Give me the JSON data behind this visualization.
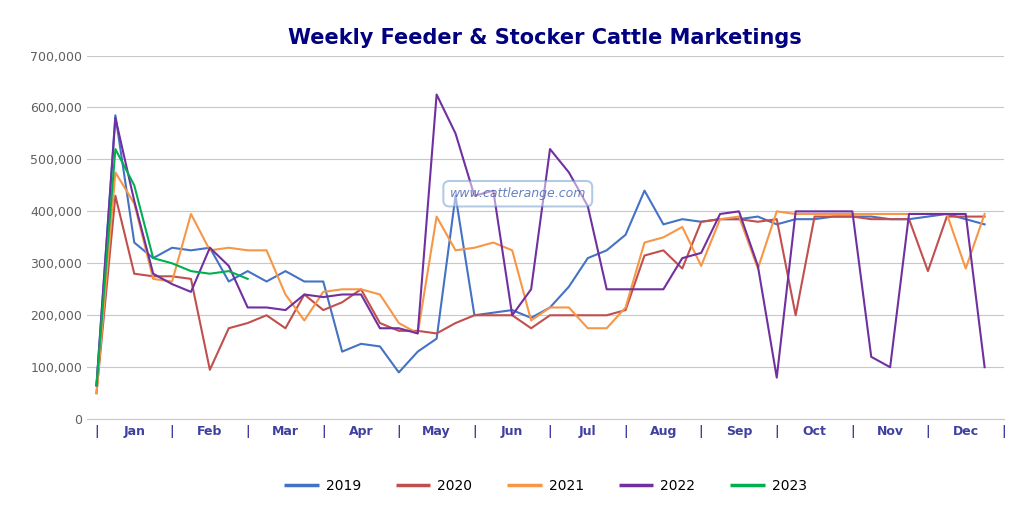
{
  "title": "Weekly Feeder & Stocker Cattle Marketings",
  "title_color": "#000080",
  "title_fontsize": 15,
  "watermark": "www.cattlerange.com",
  "background_color": "#ffffff",
  "ylim": [
    0,
    700000
  ],
  "yticks": [
    0,
    100000,
    200000,
    300000,
    400000,
    500000,
    600000,
    700000
  ],
  "ytick_labels": [
    "0",
    "100,000",
    "200,000",
    "300,000",
    "400,000",
    "500,000",
    "600,000",
    "700,000"
  ],
  "months": [
    "Jan",
    "Feb",
    "Mar",
    "Apr",
    "May",
    "Jun",
    "Jul",
    "Aug",
    "Sep",
    "Oct",
    "Nov",
    "Dec"
  ],
  "series": {
    "2019": {
      "color": "#4472C4",
      "data": [
        65000,
        585000,
        340000,
        310000,
        330000,
        325000,
        330000,
        265000,
        285000,
        265000,
        285000,
        265000,
        265000,
        130000,
        145000,
        140000,
        90000,
        130000,
        155000,
        430000,
        200000,
        205000,
        210000,
        195000,
        215000,
        255000,
        310000,
        325000,
        355000,
        440000,
        375000,
        385000,
        380000,
        385000,
        385000,
        390000,
        375000,
        385000,
        385000,
        390000,
        390000,
        390000,
        385000,
        385000,
        390000,
        395000,
        385000,
        375000
      ]
    },
    "2020": {
      "color": "#C0504D",
      "data": [
        50000,
        430000,
        280000,
        275000,
        275000,
        270000,
        95000,
        175000,
        185000,
        200000,
        175000,
        240000,
        210000,
        225000,
        250000,
        185000,
        170000,
        170000,
        165000,
        185000,
        200000,
        200000,
        200000,
        175000,
        200000,
        200000,
        200000,
        200000,
        210000,
        315000,
        325000,
        290000,
        380000,
        385000,
        385000,
        380000,
        385000,
        200000,
        390000,
        390000,
        390000,
        385000,
        385000,
        385000,
        285000,
        390000,
        390000,
        390000
      ]
    },
    "2021": {
      "color": "#F79646",
      "data": [
        50000,
        475000,
        415000,
        270000,
        265000,
        395000,
        325000,
        330000,
        325000,
        325000,
        240000,
        190000,
        245000,
        250000,
        250000,
        240000,
        185000,
        165000,
        390000,
        325000,
        330000,
        340000,
        325000,
        190000,
        215000,
        215000,
        175000,
        175000,
        215000,
        340000,
        350000,
        370000,
        295000,
        385000,
        390000,
        290000,
        400000,
        395000,
        395000,
        395000,
        395000,
        395000,
        395000,
        395000,
        395000,
        395000,
        290000,
        395000
      ]
    },
    "2022": {
      "color": "#7030A0",
      "data": [
        65000,
        580000,
        420000,
        280000,
        260000,
        245000,
        330000,
        295000,
        215000,
        215000,
        210000,
        240000,
        235000,
        240000,
        240000,
        175000,
        175000,
        165000,
        625000,
        550000,
        430000,
        440000,
        200000,
        250000,
        520000,
        475000,
        410000,
        250000,
        250000,
        250000,
        250000,
        310000,
        320000,
        395000,
        400000,
        295000,
        80000,
        400000,
        400000,
        400000,
        400000,
        120000,
        100000,
        395000,
        395000,
        395000,
        395000,
        100000
      ]
    },
    "2023": {
      "color": "#00B050",
      "data": [
        65000,
        520000,
        450000,
        310000,
        300000,
        285000,
        280000,
        285000,
        270000,
        null,
        null,
        null,
        null,
        null,
        null,
        null,
        null,
        null,
        null,
        null,
        null,
        null,
        null,
        null,
        null,
        null,
        null,
        null,
        null,
        null,
        null,
        null,
        null,
        null,
        null,
        null,
        null,
        null,
        null,
        null,
        null,
        null,
        null,
        null,
        null,
        null,
        null,
        null
      ]
    }
  },
  "legend": {
    "entries": [
      "2019",
      "2020",
      "2021",
      "2022",
      "2023"
    ],
    "colors": [
      "#4472C4",
      "#C0504D",
      "#F79646",
      "#7030A0",
      "#00B050"
    ]
  },
  "grid_color": "#C8C8C8",
  "xtick_color": "#4040A0",
  "ytick_color": "#606060",
  "n_weeks": 48,
  "weeks_per_month": 4
}
